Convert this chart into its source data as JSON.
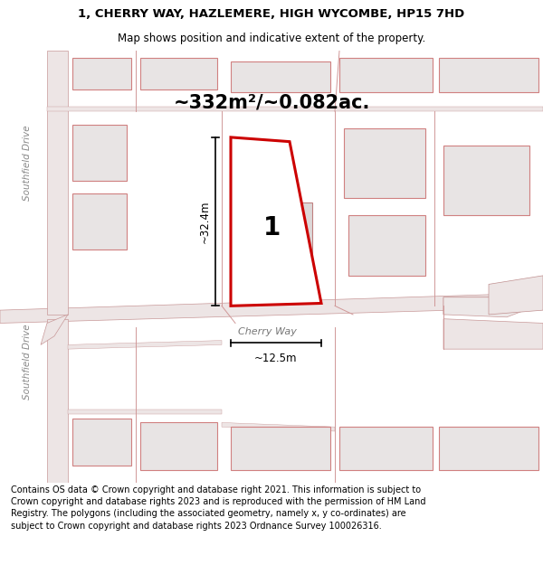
{
  "title_line1": "1, CHERRY WAY, HAZLEMERE, HIGH WYCOMBE, HP15 7HD",
  "title_line2": "Map shows position and indicative extent of the property.",
  "area_text": "~332m²/~0.082ac.",
  "label_number": "1",
  "dim_height": "~32.4m",
  "dim_width": "~12.5m",
  "road_label": "Cherry Way",
  "road_label2": "Southfield Drive",
  "footer_text": "Contains OS data © Crown copyright and database right 2021. This information is subject to Crown copyright and database rights 2023 and is reproduced with the permission of HM Land Registry. The polygons (including the associated geometry, namely x, y co-ordinates) are subject to Crown copyright and database rights 2023 Ordnance Survey 100026316.",
  "bg_color": "#f5f5f5",
  "map_bg": "#f0eeee",
  "highlight_color": "#cc0000",
  "title_fontsize": 9.5,
  "subtitle_fontsize": 8.5,
  "area_fontsize": 15,
  "footer_fontsize": 7.0
}
